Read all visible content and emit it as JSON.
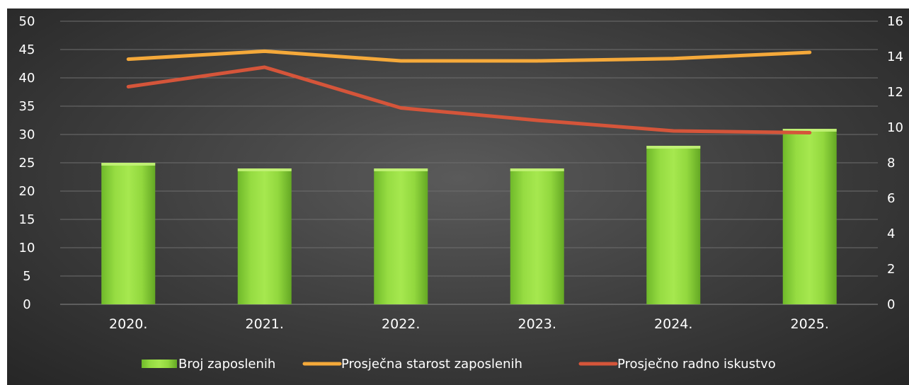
{
  "chart_data": {
    "type": "bar+line",
    "categories": [
      "2020.",
      "2021.",
      "2022.",
      "2023.",
      "2024.",
      "2025."
    ],
    "y_left": {
      "min": 0,
      "max": 50,
      "ticks": [
        "0",
        "5",
        "10",
        "15",
        "20",
        "25",
        "30",
        "35",
        "40",
        "45",
        "50"
      ]
    },
    "y_right": {
      "min": 0,
      "max": 16,
      "ticks": [
        "0",
        "2",
        "4",
        "6",
        "8",
        "10",
        "12",
        "14",
        "16"
      ]
    },
    "grid": true,
    "legend_position": "bottom",
    "series": [
      {
        "name": "Broj zaposlenih",
        "type": "bar",
        "axis": "left",
        "color": "#8ed63a",
        "values": [
          25,
          24,
          24,
          24,
          28,
          31
        ]
      },
      {
        "name": "Prosječna starost zaposlenih",
        "type": "line",
        "axis": "left",
        "color": "#f5a93a",
        "values": [
          43.3,
          44.7,
          43.0,
          43.0,
          43.4,
          44.5
        ]
      },
      {
        "name": "Prosječno radno iskustvo",
        "type": "line",
        "axis": "right",
        "color": "#d5553a",
        "values": [
          12.3,
          13.4,
          11.1,
          10.4,
          9.8,
          9.7
        ]
      }
    ]
  }
}
